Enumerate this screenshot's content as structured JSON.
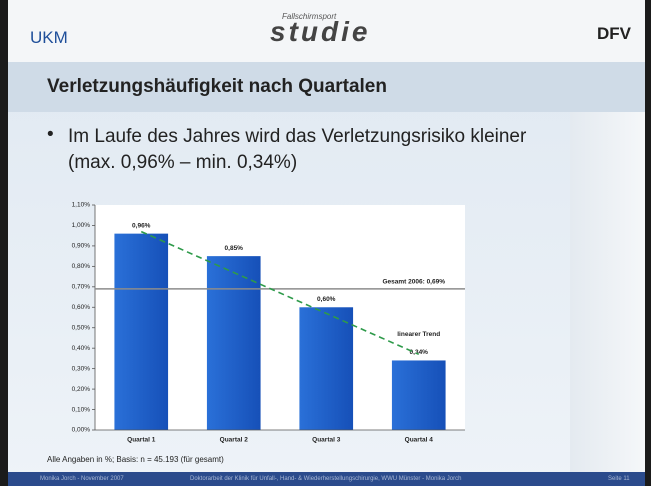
{
  "header": {
    "left_logo": "UKM",
    "center_logo_small": "Fallschirmsport",
    "center_logo": "studie",
    "right_logo": "DFV"
  },
  "title": "Verletzungshäufigkeit nach Quartalen",
  "bullet": "Im Laufe des Jahres wird das Verletzungsrisiko kleiner (max. 0,96% – min. 0,34%)",
  "chart_data": {
    "type": "bar",
    "categories": [
      "Quartal 1",
      "Quartal 2",
      "Quartal 3",
      "Quartal 4"
    ],
    "values": [
      0.96,
      0.85,
      0.6,
      0.34
    ],
    "value_labels": [
      "0,96%",
      "0,85%",
      "0,60%",
      "0,34%"
    ],
    "color": "#1a5fc9",
    "ylim": [
      0,
      1.1
    ],
    "yticks": [
      {
        "value": 0,
        "label": "0,00%"
      },
      {
        "value": 0.1,
        "label": "0,10%"
      },
      {
        "value": 0.2,
        "label": "0,20%"
      },
      {
        "value": 0.3,
        "label": "0,30%"
      },
      {
        "value": 0.4,
        "label": "0,40%"
      },
      {
        "value": 0.5,
        "label": "0,50%"
      },
      {
        "value": 0.6,
        "label": "0,60%"
      },
      {
        "value": 0.7,
        "label": "0,70%"
      },
      {
        "value": 0.8,
        "label": "0,80%"
      },
      {
        "value": 0.9,
        "label": "0,90%"
      },
      {
        "value": 1,
        "label": "1,00%"
      },
      {
        "value": 1.1,
        "label": "1,10%"
      }
    ],
    "reference_line": {
      "label": "Gesamt 2006: 0,69%",
      "value": 0.69,
      "color": "#8c8c8c"
    },
    "trend": {
      "name": "linearer Trend",
      "values": [
        0.97,
        0.77,
        0.57,
        0.37
      ],
      "color": "#2e9a4a"
    }
  },
  "footnote": "Alle Angaben in %; Basis: n = 45.193 (für gesamt)",
  "footer": {
    "left": "Monika Jorch - November 2007",
    "center": "Doktorarbeit der Klinik für Unfall-, Hand- & Wiederherstellungschirurgie, WWU Münster - Monika Jorch",
    "right": "Seite 11"
  }
}
